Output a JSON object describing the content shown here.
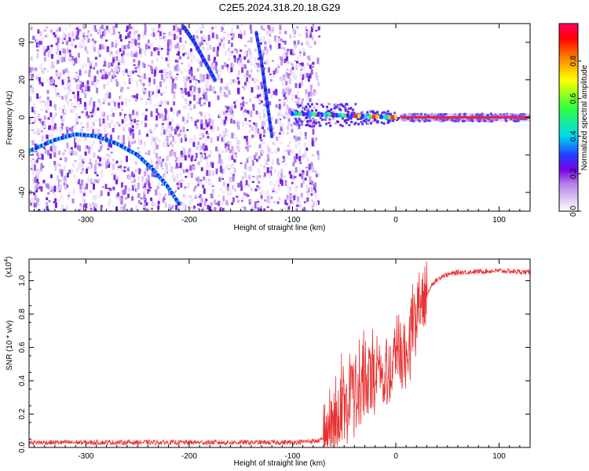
{
  "title": "C2E5.2024.318.20.18.G29",
  "chart_data": [
    {
      "type": "heatmap",
      "xlabel": "Height of straight line (km)",
      "ylabel": "Frequency (Hz)",
      "xlim": [
        -355,
        130
      ],
      "ylim": [
        -50,
        50
      ],
      "xticks": [
        -300,
        -200,
        -100,
        0,
        100
      ],
      "yticks": [
        -40,
        -20,
        0,
        20,
        40
      ],
      "colorbar": {
        "label": "Normalized spectral amplitude",
        "range": [
          0,
          1
        ],
        "ticks": [
          "0.0",
          "0.2",
          "0.4",
          "0.6",
          "0.8"
        ],
        "colors": [
          "#ffffff",
          "#c9a3f0",
          "#8a2be2",
          "#3b2ce8",
          "#00e0ff",
          "#00ff40",
          "#ffff00",
          "#ff8000",
          "#ff0000",
          "#ff0060"
        ]
      },
      "features": [
        {
          "name": "lower arc",
          "points": [
            [
              -355,
              -18
            ],
            [
              -330,
              -12
            ],
            [
              -310,
              -9
            ],
            [
              -290,
              -10
            ],
            [
              -270,
              -14
            ],
            [
              -250,
              -20
            ],
            [
              -235,
              -28
            ],
            [
              -222,
              -36
            ],
            [
              -210,
              -46
            ]
          ]
        },
        {
          "name": "upper diagonal",
          "points": [
            [
              -205,
              48
            ],
            [
              -195,
              40
            ],
            [
              -185,
              30
            ],
            [
              -175,
              20
            ]
          ]
        },
        {
          "name": "steep line",
          "points": [
            [
              -135,
              45
            ],
            [
              -130,
              30
            ],
            [
              -125,
              10
            ],
            [
              -120,
              -10
            ]
          ]
        },
        {
          "name": "central band",
          "points": [
            [
              -100,
              2
            ],
            [
              -50,
              1
            ],
            [
              0,
              0
            ],
            [
              130,
              0
            ]
          ]
        }
      ]
    },
    {
      "type": "line",
      "xlabel": "Height of straight line (km)",
      "ylabel": "SNR (10 * v/v)",
      "ylabel_multiplier": "(x10",
      "ylabel_exponent": "4",
      "xlim": [
        -355,
        130
      ],
      "ylim": [
        0,
        1.13
      ],
      "xticks": [
        -300,
        -200,
        -100,
        0,
        100
      ],
      "yticks": [
        "0.0",
        "0.2",
        "0.4",
        "0.6",
        "0.8",
        "1.0"
      ],
      "color": "#e83030",
      "profile": [
        [
          -355,
          0.03
        ],
        [
          -100,
          0.03
        ],
        [
          -75,
          0.04
        ],
        [
          -65,
          0.06
        ],
        [
          -55,
          0.2
        ],
        [
          -45,
          0.3
        ],
        [
          -35,
          0.35
        ],
        [
          -25,
          0.4
        ],
        [
          -15,
          0.45
        ],
        [
          -5,
          0.5
        ],
        [
          5,
          0.55
        ],
        [
          15,
          0.65
        ],
        [
          25,
          0.85
        ],
        [
          35,
          0.98
        ],
        [
          45,
          1.03
        ],
        [
          60,
          1.05
        ],
        [
          100,
          1.06
        ],
        [
          130,
          1.05
        ]
      ]
    }
  ]
}
